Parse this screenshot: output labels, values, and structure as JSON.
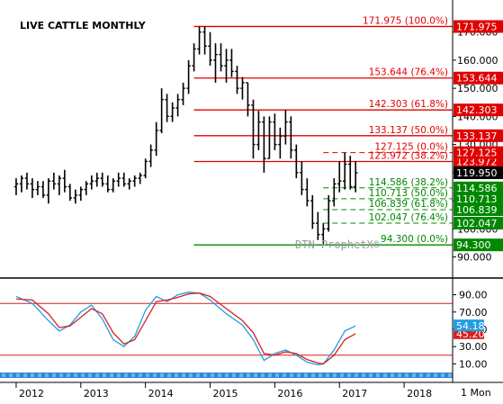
{
  "chart_data": {
    "type": "bar",
    "title": "LIVE CATTLE MONTHLY",
    "watermark": "DTN ProphetX®",
    "period_label": "1 Mon",
    "x_years": [
      "2012",
      "2013",
      "2014",
      "2015",
      "2016",
      "2017",
      "2018"
    ],
    "price_axis": {
      "ylim": [
        87,
        175
      ],
      "ticks": [
        90,
        100,
        110,
        120,
        130,
        140,
        150,
        160,
        170
      ],
      "tick_labels": [
        "90.000",
        "100.000",
        "110.000",
        "120.000",
        "130.000",
        "140.000",
        "150.000",
        "160.000",
        "170.000"
      ]
    },
    "price_bars": [
      [
        2012.0,
        115,
        118,
        112,
        116
      ],
      [
        2012.083,
        116,
        119,
        113,
        118
      ],
      [
        2012.167,
        118,
        120,
        114,
        116
      ],
      [
        2012.25,
        116,
        118,
        111,
        114
      ],
      [
        2012.333,
        114,
        117,
        112,
        115
      ],
      [
        2012.417,
        115,
        117,
        111,
        112
      ],
      [
        2012.5,
        112,
        118,
        109,
        117
      ],
      [
        2012.583,
        117,
        120,
        114,
        116
      ],
      [
        2012.667,
        116,
        119,
        112,
        118
      ],
      [
        2012.75,
        118,
        121,
        113,
        115
      ],
      [
        2012.833,
        115,
        116,
        110,
        111
      ],
      [
        2012.917,
        111,
        114,
        109,
        112
      ],
      [
        2013.0,
        112,
        115,
        110,
        114
      ],
      [
        2013.083,
        114,
        117,
        112,
        116
      ],
      [
        2013.167,
        116,
        119,
        114,
        117
      ],
      [
        2013.25,
        117,
        120,
        115,
        118
      ],
      [
        2013.333,
        118,
        120,
        115,
        116
      ],
      [
        2013.417,
        116,
        119,
        113,
        114
      ],
      [
        2013.5,
        114,
        118,
        113,
        117
      ],
      [
        2013.583,
        117,
        120,
        115,
        118
      ],
      [
        2013.667,
        118,
        120,
        115,
        116
      ],
      [
        2013.75,
        116,
        118,
        114,
        117
      ],
      [
        2013.833,
        117,
        119,
        115,
        118
      ],
      [
        2013.917,
        118,
        120,
        116,
        119
      ],
      [
        2014.0,
        119,
        125,
        118,
        124
      ],
      [
        2014.083,
        124,
        130,
        122,
        128
      ],
      [
        2014.167,
        128,
        138,
        126,
        135
      ],
      [
        2014.25,
        135,
        150,
        134,
        146
      ],
      [
        2014.333,
        146,
        148,
        138,
        140
      ],
      [
        2014.417,
        140,
        145,
        138,
        143
      ],
      [
        2014.5,
        143,
        148,
        140,
        146
      ],
      [
        2014.583,
        146,
        152,
        144,
        150
      ],
      [
        2014.667,
        150,
        160,
        148,
        158
      ],
      [
        2014.75,
        158,
        166,
        156,
        164
      ],
      [
        2014.833,
        164,
        171.975,
        162,
        170
      ],
      [
        2014.917,
        170,
        172,
        162,
        165
      ],
      [
        2015.0,
        165,
        170,
        158,
        160
      ],
      [
        2015.083,
        160,
        166,
        152,
        162
      ],
      [
        2015.167,
        162,
        166,
        156,
        158
      ],
      [
        2015.25,
        158,
        164,
        152,
        160
      ],
      [
        2015.333,
        160,
        164,
        154,
        156
      ],
      [
        2015.417,
        156,
        158,
        148,
        150
      ],
      [
        2015.5,
        150,
        154,
        146,
        152
      ],
      [
        2015.583,
        152,
        152,
        140,
        144
      ],
      [
        2015.667,
        144,
        146,
        125,
        130
      ],
      [
        2015.75,
        130,
        142,
        128,
        138
      ],
      [
        2015.833,
        138,
        140,
        120,
        125
      ],
      [
        2015.917,
        125,
        140,
        125,
        138
      ],
      [
        2016.0,
        138,
        141,
        128,
        130
      ],
      [
        2016.083,
        130,
        136,
        125,
        133
      ],
      [
        2016.167,
        133,
        142.3,
        130,
        138
      ],
      [
        2016.25,
        138,
        140,
        125,
        128
      ],
      [
        2016.333,
        128,
        130,
        118,
        120
      ],
      [
        2016.417,
        120,
        124,
        112,
        114
      ],
      [
        2016.5,
        114,
        118,
        108,
        110
      ],
      [
        2016.583,
        110,
        112,
        100,
        102
      ],
      [
        2016.667,
        102,
        106,
        96,
        98
      ],
      [
        2016.75,
        98,
        102,
        94.3,
        100
      ],
      [
        2016.833,
        100,
        112,
        99,
        110
      ],
      [
        2016.917,
        110,
        118,
        108,
        116
      ],
      [
        2017.0,
        116,
        124,
        113,
        117
      ],
      [
        2017.083,
        117,
        127.125,
        114,
        123
      ],
      [
        2017.167,
        123,
        126,
        114,
        115
      ],
      [
        2017.25,
        115,
        124,
        113,
        119.95
      ]
    ],
    "last_price": {
      "value": 119.95,
      "label": "119.950"
    },
    "fib_levels": [
      {
        "label": "171.975 (100.0%)",
        "tag": "171.975",
        "value": 171.975,
        "color": "#e00000",
        "tag_color": "#e00000",
        "style": "solid",
        "x_start": 2014.75
      },
      {
        "label": "153.644 (76.4%)",
        "tag": "153.644",
        "value": 153.644,
        "color": "#e00000",
        "tag_color": "#e00000",
        "style": "solid",
        "x_start": 2014.75
      },
      {
        "label": "142.303 (61.8%)",
        "tag": "142.303",
        "value": 142.303,
        "color": "#e00000",
        "tag_color": "#e00000",
        "style": "solid",
        "x_start": 2014.75
      },
      {
        "label": "133.137 (50.0%)",
        "tag": "133.137",
        "value": 133.137,
        "color": "#e00000",
        "tag_color": "#e00000",
        "style": "solid",
        "x_start": 2014.75
      },
      {
        "label": "123.972 (38.2%)",
        "tag": "123.972",
        "value": 123.972,
        "color": "#e00000",
        "tag_color": "#e00000",
        "style": "solid",
        "x_start": 2014.75
      },
      {
        "label": "127.125 (0.0%)",
        "tag": "127.125",
        "value": 127.125,
        "color": "#e00000",
        "tag_color": "#e00000",
        "style": "dashed",
        "x_start": 2016.75
      },
      {
        "label": "114.586 (38.2%)",
        "tag": "114.586",
        "value": 114.586,
        "color": "#008800",
        "tag_color": "#008800",
        "style": "dashed",
        "x_start": 2016.75
      },
      {
        "label": "110.713 (50.0%)",
        "tag": "110.713",
        "value": 110.713,
        "color": "#008800",
        "tag_color": "#008800",
        "style": "dashed",
        "x_start": 2016.75
      },
      {
        "label": "106.839 (61.8%)",
        "tag": "106.839",
        "value": 106.839,
        "color": "#008800",
        "tag_color": "#008800",
        "style": "dashed",
        "x_start": 2016.75
      },
      {
        "label": "102.047 (76.4%)",
        "tag": "102.047",
        "value": 102.047,
        "color": "#008800",
        "tag_color": "#008800",
        "style": "dashed",
        "x_start": 2016.75
      },
      {
        "label": "94.300 (0.0%)",
        "tag": "94.300",
        "value": 94.3,
        "color": "#008800",
        "tag_color": "#008800",
        "style": "solid",
        "x_start": 2014.75
      }
    ],
    "stochastic": {
      "ylim": [
        0,
        100
      ],
      "ticks": [
        10,
        30,
        50,
        70,
        90
      ],
      "tick_labels": [
        "10.00",
        "30.00",
        "50.00",
        "70.00",
        "90.00"
      ],
      "overbought": 80,
      "oversold": 20,
      "k_color": "#1f9fe0",
      "d_color": "#d81f1f",
      "k_value_label": "54.18",
      "d_value_label": "45.20",
      "series": [
        {
          "name": "%K",
          "values": [
            [
              2012.0,
              88
            ],
            [
              2012.25,
              80
            ],
            [
              2012.5,
              60
            ],
            [
              2012.667,
              48
            ],
            [
              2012.833,
              55
            ],
            [
              2013.0,
              70
            ],
            [
              2013.167,
              78
            ],
            [
              2013.333,
              62
            ],
            [
              2013.5,
              38
            ],
            [
              2013.667,
              30
            ],
            [
              2013.833,
              42
            ],
            [
              2014.0,
              72
            ],
            [
              2014.167,
              88
            ],
            [
              2014.333,
              82
            ],
            [
              2014.5,
              90
            ],
            [
              2014.667,
              93
            ],
            [
              2014.833,
              92
            ],
            [
              2015.0,
              84
            ],
            [
              2015.25,
              68
            ],
            [
              2015.5,
              55
            ],
            [
              2015.667,
              38
            ],
            [
              2015.833,
              14
            ],
            [
              2016.0,
              22
            ],
            [
              2016.167,
              26
            ],
            [
              2016.333,
              20
            ],
            [
              2016.5,
              12
            ],
            [
              2016.667,
              9
            ],
            [
              2016.75,
              10
            ],
            [
              2016.917,
              26
            ],
            [
              2017.083,
              48
            ],
            [
              2017.25,
              54
            ]
          ]
        },
        {
          "name": "%D",
          "values": [
            [
              2012.0,
              85
            ],
            [
              2012.25,
              84
            ],
            [
              2012.5,
              68
            ],
            [
              2012.667,
              52
            ],
            [
              2012.833,
              54
            ],
            [
              2013.0,
              64
            ],
            [
              2013.167,
              74
            ],
            [
              2013.333,
              68
            ],
            [
              2013.5,
              46
            ],
            [
              2013.667,
              33
            ],
            [
              2013.833,
              38
            ],
            [
              2014.0,
              60
            ],
            [
              2014.167,
              82
            ],
            [
              2014.333,
              84
            ],
            [
              2014.5,
              87
            ],
            [
              2014.667,
              91
            ],
            [
              2014.833,
              92
            ],
            [
              2015.0,
              88
            ],
            [
              2015.25,
              74
            ],
            [
              2015.5,
              60
            ],
            [
              2015.667,
              46
            ],
            [
              2015.833,
              22
            ],
            [
              2016.0,
              20
            ],
            [
              2016.167,
              24
            ],
            [
              2016.333,
              22
            ],
            [
              2016.5,
              15
            ],
            [
              2016.667,
              11
            ],
            [
              2016.75,
              10
            ],
            [
              2016.917,
              20
            ],
            [
              2017.083,
              38
            ],
            [
              2017.25,
              45
            ]
          ]
        }
      ]
    }
  }
}
